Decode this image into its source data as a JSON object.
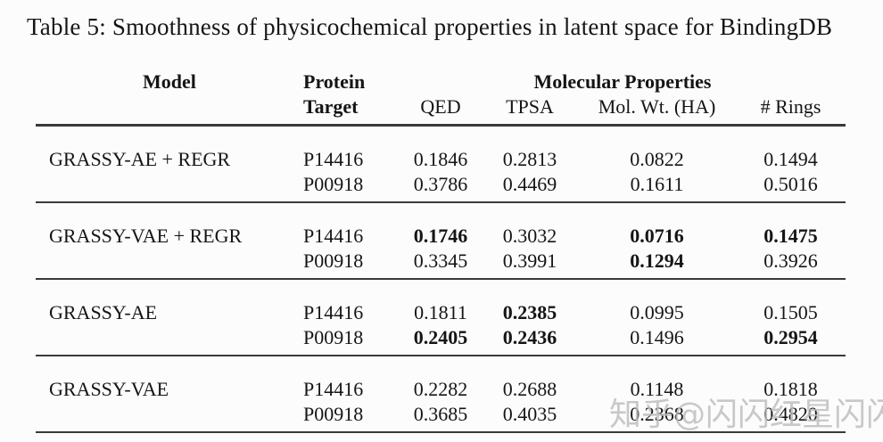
{
  "title": "Table 5: Smoothness of physicochemical properties in latent space for BindingDB",
  "table": {
    "header": {
      "model": "Model",
      "protein_line1": "Protein",
      "protein_line2": "Target",
      "group": "Molecular Properties",
      "columns": [
        "QED",
        "TPSA",
        "Mol. Wt. (HA)",
        "# Rings"
      ]
    },
    "sections": [
      {
        "model": "GRASSY-AE + REGR",
        "rows": [
          {
            "target": "P14416",
            "values": [
              {
                "v": "0.1846",
                "bold": false
              },
              {
                "v": "0.2813",
                "bold": false
              },
              {
                "v": "0.0822",
                "bold": false
              },
              {
                "v": "0.1494",
                "bold": false
              }
            ]
          },
          {
            "target": "P00918",
            "values": [
              {
                "v": "0.3786",
                "bold": false
              },
              {
                "v": "0.4469",
                "bold": false
              },
              {
                "v": "0.1611",
                "bold": false
              },
              {
                "v": "0.5016",
                "bold": false
              }
            ]
          }
        ]
      },
      {
        "model": "GRASSY-VAE + REGR",
        "rows": [
          {
            "target": "P14416",
            "values": [
              {
                "v": "0.1746",
                "bold": true
              },
              {
                "v": "0.3032",
                "bold": false
              },
              {
                "v": "0.0716",
                "bold": true
              },
              {
                "v": "0.1475",
                "bold": true
              }
            ]
          },
          {
            "target": "P00918",
            "values": [
              {
                "v": "0.3345",
                "bold": false
              },
              {
                "v": "0.3991",
                "bold": false
              },
              {
                "v": "0.1294",
                "bold": true
              },
              {
                "v": "0.3926",
                "bold": false
              }
            ]
          }
        ]
      },
      {
        "model": "GRASSY-AE",
        "rows": [
          {
            "target": "P14416",
            "values": [
              {
                "v": "0.1811",
                "bold": false
              },
              {
                "v": "0.2385",
                "bold": true
              },
              {
                "v": "0.0995",
                "bold": false
              },
              {
                "v": "0.1505",
                "bold": false
              }
            ]
          },
          {
            "target": "P00918",
            "values": [
              {
                "v": "0.2405",
                "bold": true
              },
              {
                "v": "0.2436",
                "bold": true
              },
              {
                "v": "0.1496",
                "bold": false
              },
              {
                "v": "0.2954",
                "bold": true
              }
            ]
          }
        ]
      },
      {
        "model": "GRASSY-VAE",
        "rows": [
          {
            "target": "P14416",
            "values": [
              {
                "v": "0.2282",
                "bold": false
              },
              {
                "v": "0.2688",
                "bold": false
              },
              {
                "v": "0.1148",
                "bold": false
              },
              {
                "v": "0.1818",
                "bold": false
              }
            ]
          },
          {
            "target": "P00918",
            "values": [
              {
                "v": "0.3685",
                "bold": false
              },
              {
                "v": "0.4035",
                "bold": false
              },
              {
                "v": "0.2368",
                "bold": false
              },
              {
                "v": "0.4820",
                "bold": false
              }
            ]
          }
        ]
      }
    ]
  },
  "watermark": "知乎@闪闪红星闪闪",
  "colors": {
    "text": "#151515",
    "rule": "#3a3a3a",
    "watermark": "#bcbcbc",
    "background": "#fcfcfc"
  }
}
